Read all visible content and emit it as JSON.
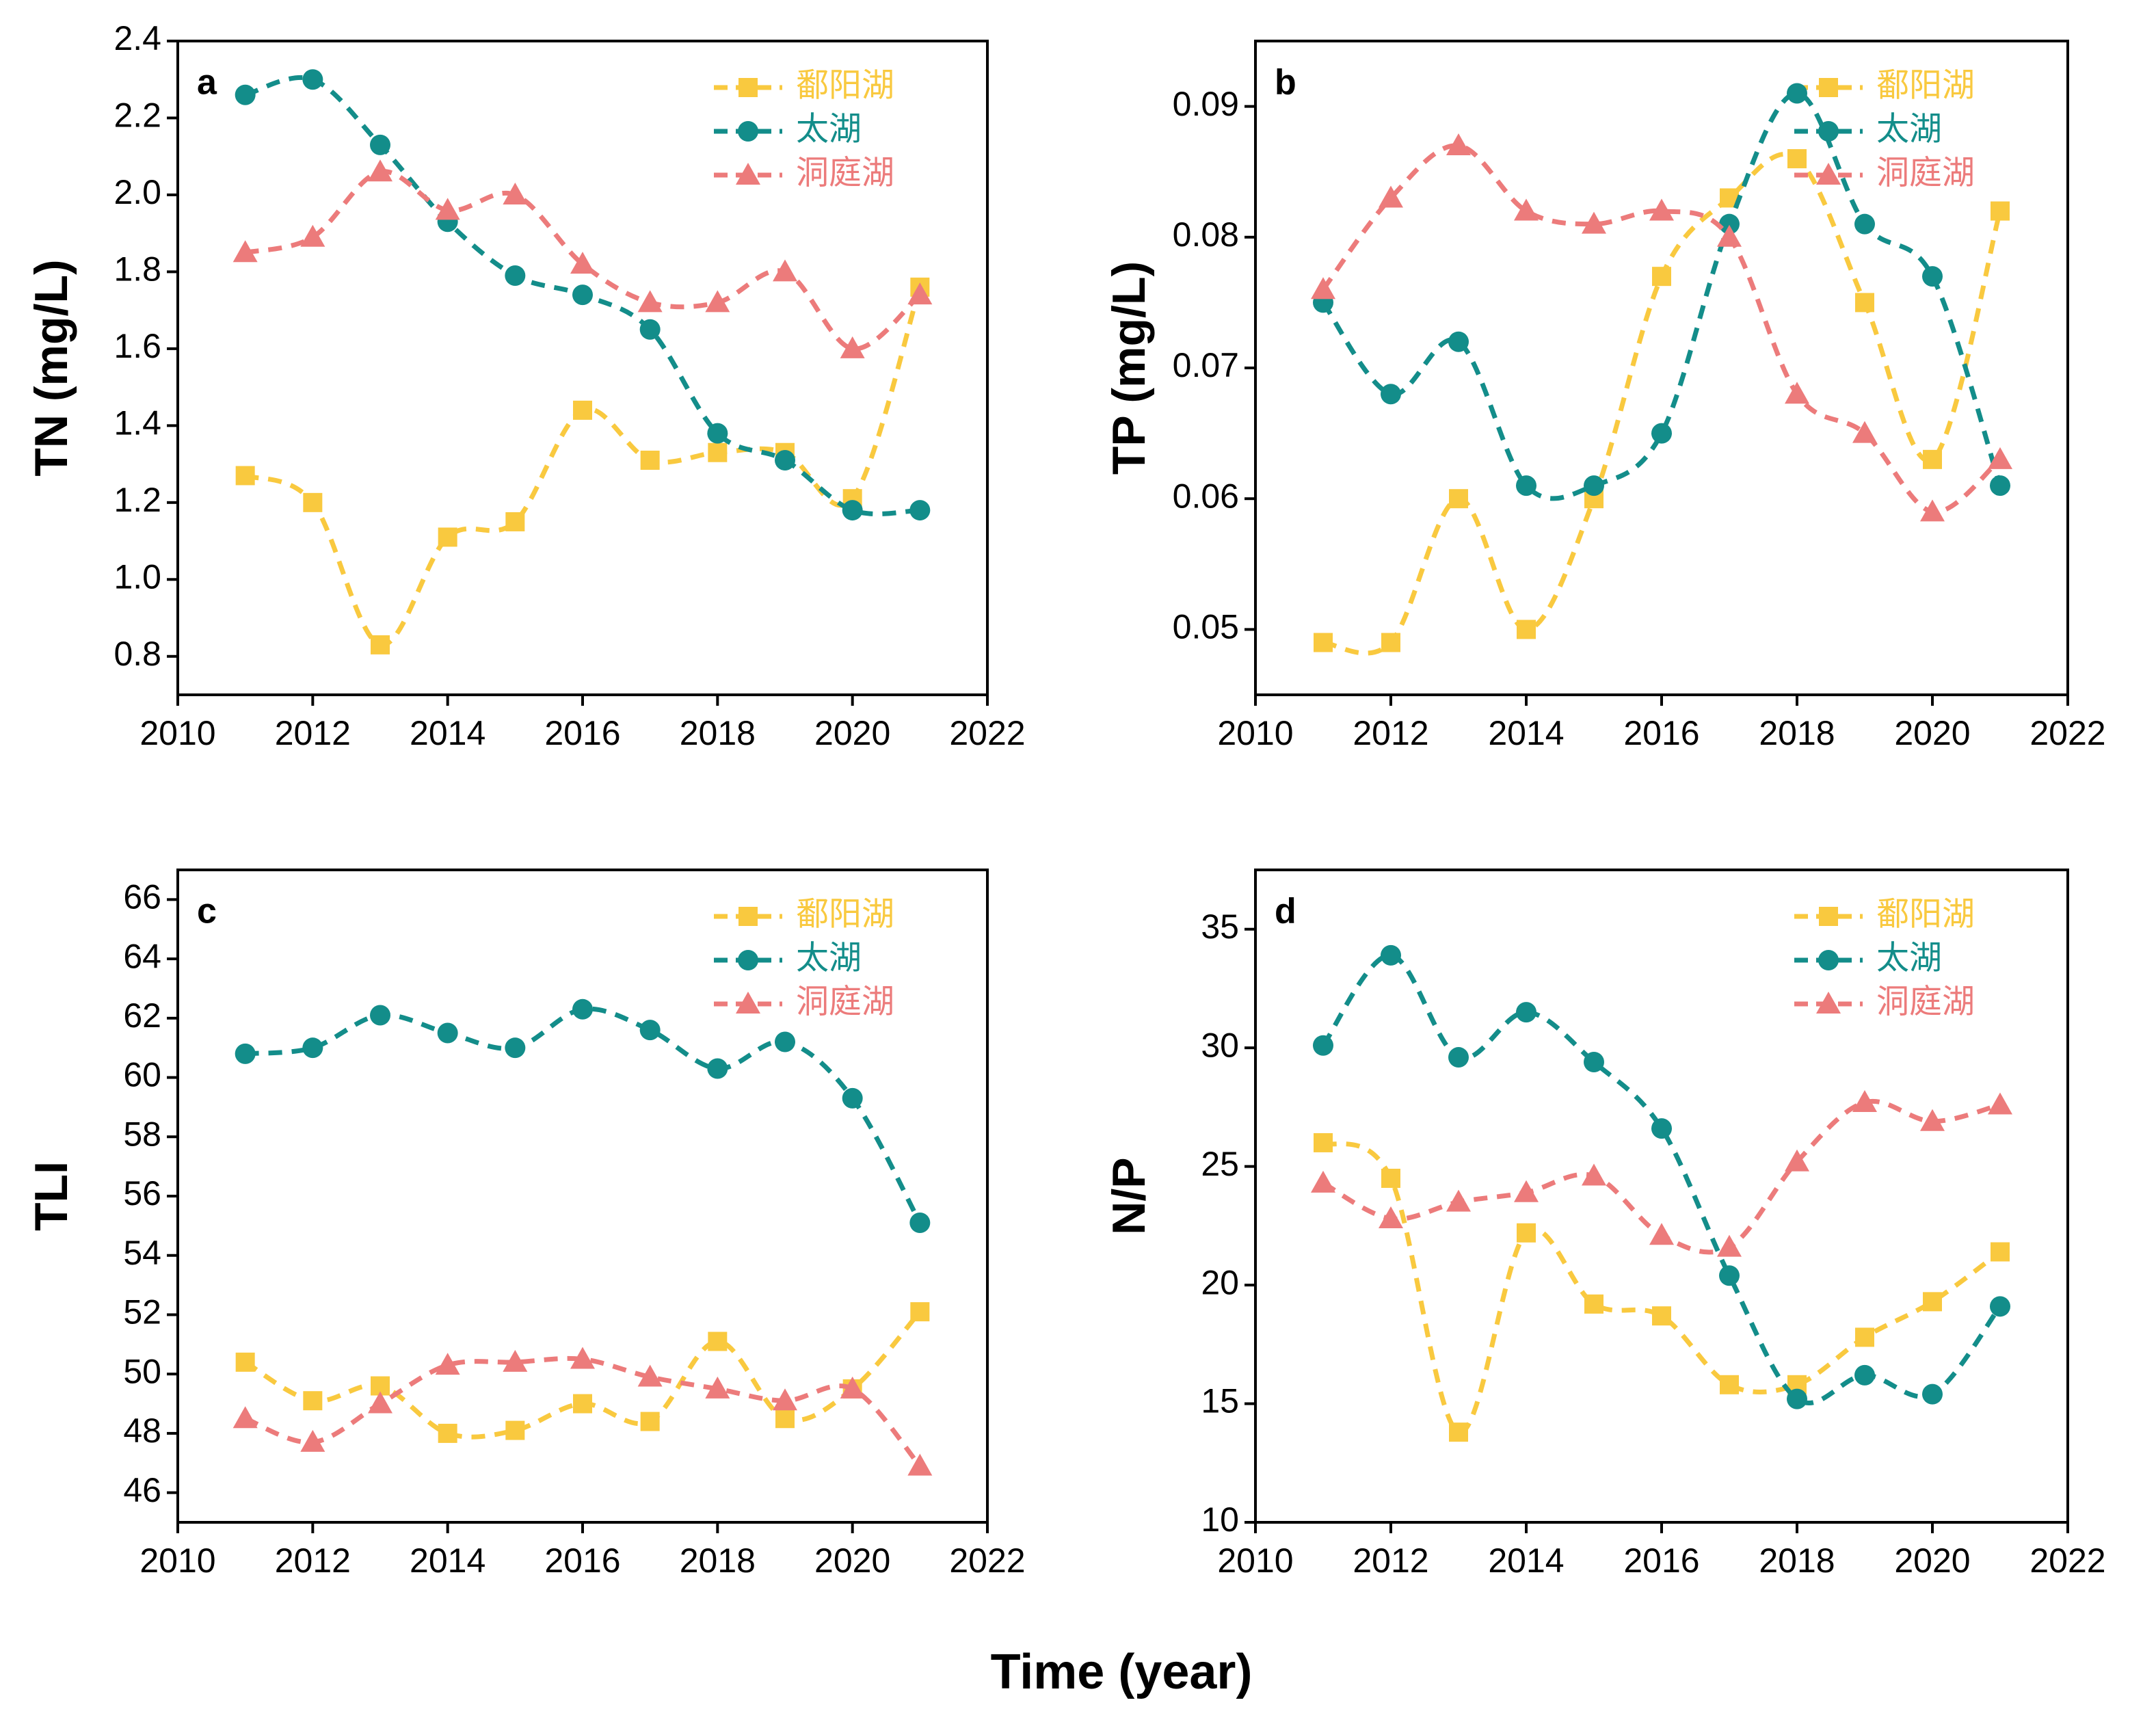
{
  "chart_data": [
    {
      "type": "line",
      "label": "a",
      "ylabel": "TN (mg/L)",
      "x": [
        2011,
        2012,
        2013,
        2014,
        2015,
        2016,
        2017,
        2018,
        2019,
        2020,
        2021
      ],
      "xlim": [
        2010,
        2022
      ],
      "xticks": [
        2010,
        2012,
        2014,
        2016,
        2018,
        2020,
        2022
      ],
      "ylim": [
        0.7,
        2.4
      ],
      "yticks": [
        0.8,
        {
          "value": 1,
          "label": "1.0"
        },
        1.2,
        1.4,
        1.6,
        1.8,
        {
          "value": 2,
          "label": "2.0"
        },
        2.2,
        2.4
      ],
      "series": [
        {
          "name": "鄱阳湖",
          "color": "#f9c93f",
          "marker": "square",
          "values": [
            1.27,
            1.2,
            0.83,
            1.11,
            1.15,
            1.44,
            1.31,
            1.33,
            1.33,
            1.21,
            1.76
          ]
        },
        {
          "name": "太湖",
          "color": "#138d8a",
          "marker": "circle",
          "values": [
            2.26,
            2.3,
            2.13,
            1.93,
            1.79,
            1.74,
            1.65,
            1.38,
            1.31,
            1.18,
            1.18
          ]
        },
        {
          "name": "洞庭湖",
          "color": "#ec7b7b",
          "marker": "triangle",
          "values": [
            1.85,
            1.89,
            2.06,
            1.96,
            2.0,
            1.82,
            1.72,
            1.72,
            1.8,
            1.6,
            1.74
          ]
        }
      ]
    },
    {
      "type": "line",
      "label": "b",
      "ylabel": "TP (mg/L)",
      "x": [
        2011,
        2012,
        2013,
        2014,
        2015,
        2016,
        2017,
        2018,
        2019,
        2020,
        2021
      ],
      "xlim": [
        2010,
        2022
      ],
      "xticks": [
        2010,
        2012,
        2014,
        2016,
        2018,
        2020,
        2022
      ],
      "ylim": [
        0.045,
        0.095
      ],
      "yticks": [
        0.05,
        0.06,
        0.07,
        0.08,
        0.09
      ],
      "series": [
        {
          "name": "鄱阳湖",
          "color": "#f9c93f",
          "marker": "square",
          "values": [
            0.049,
            0.049,
            0.06,
            0.05,
            0.06,
            0.077,
            0.083,
            0.086,
            0.075,
            0.063,
            0.082
          ]
        },
        {
          "name": "太湖",
          "color": "#138d8a",
          "marker": "circle",
          "values": [
            0.075,
            0.068,
            0.072,
            0.061,
            0.061,
            0.065,
            0.081,
            0.091,
            0.081,
            0.077,
            0.061
          ]
        },
        {
          "name": "洞庭湖",
          "color": "#ec7b7b",
          "marker": "triangle",
          "values": [
            0.076,
            0.083,
            0.087,
            0.082,
            0.081,
            0.082,
            0.08,
            0.068,
            0.065,
            0.059,
            0.063
          ]
        }
      ]
    },
    {
      "type": "line",
      "label": "c",
      "ylabel": "TLI",
      "x": [
        2011,
        2012,
        2013,
        2014,
        2015,
        2016,
        2017,
        2018,
        2019,
        2020,
        2021
      ],
      "xlim": [
        2010,
        2022
      ],
      "xticks": [
        2010,
        2012,
        2014,
        2016,
        2018,
        2020,
        2022
      ],
      "ylim": [
        45,
        67
      ],
      "yticks": [
        46,
        48,
        50,
        52,
        54,
        56,
        58,
        60,
        62,
        64,
        66
      ],
      "series": [
        {
          "name": "鄱阳湖",
          "color": "#f9c93f",
          "marker": "square",
          "values": [
            50.4,
            49.1,
            49.6,
            48.0,
            48.1,
            49.0,
            48.4,
            51.1,
            48.5,
            49.5,
            52.1
          ]
        },
        {
          "name": "太湖",
          "color": "#138d8a",
          "marker": "circle",
          "values": [
            60.8,
            61.0,
            62.1,
            61.5,
            61.0,
            62.3,
            61.6,
            60.3,
            61.2,
            59.3,
            55.1
          ]
        },
        {
          "name": "洞庭湖",
          "color": "#ec7b7b",
          "marker": "triangle",
          "values": [
            48.5,
            47.7,
            49.0,
            50.3,
            50.4,
            50.5,
            49.9,
            49.5,
            49.1,
            49.5,
            46.9
          ]
        }
      ]
    },
    {
      "type": "line",
      "label": "d",
      "ylabel": "N/P",
      "x": [
        2011,
        2012,
        2013,
        2014,
        2015,
        2016,
        2017,
        2018,
        2019,
        2020,
        2021
      ],
      "xlim": [
        2010,
        2022
      ],
      "xticks": [
        2010,
        2012,
        2014,
        2016,
        2018,
        2020,
        2022
      ],
      "ylim": [
        10,
        37.5
      ],
      "yticks": [
        10,
        15,
        20,
        25,
        30,
        35
      ],
      "series": [
        {
          "name": "鄱阳湖",
          "color": "#f9c93f",
          "marker": "square",
          "values": [
            26.0,
            24.5,
            13.8,
            22.2,
            19.2,
            18.7,
            15.8,
            15.8,
            17.8,
            19.3,
            21.4
          ]
        },
        {
          "name": "太湖",
          "color": "#138d8a",
          "marker": "circle",
          "values": [
            30.1,
            33.9,
            29.6,
            31.5,
            29.4,
            26.6,
            20.4,
            15.2,
            16.2,
            15.4,
            19.1
          ]
        },
        {
          "name": "洞庭湖",
          "color": "#ec7b7b",
          "marker": "triangle",
          "values": [
            24.3,
            22.8,
            23.5,
            23.9,
            24.6,
            22.1,
            21.6,
            25.2,
            27.7,
            26.9,
            27.6
          ]
        }
      ]
    }
  ],
  "xlabel": "Time (year)"
}
